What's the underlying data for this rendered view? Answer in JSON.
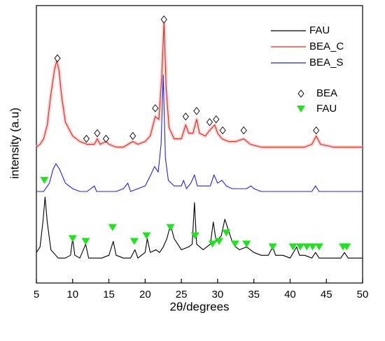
{
  "chart_data": {
    "type": "line",
    "x_label": "2θ/degrees",
    "y_label": "intensity (a.u)",
    "xlim": [
      5,
      50
    ],
    "xticks": [
      5,
      10,
      15,
      20,
      25,
      30,
      35,
      40,
      45,
      50
    ],
    "ylim": [
      0,
      100
    ],
    "series": [
      {
        "name": "FAU",
        "color": "#000000",
        "marker": "line",
        "x": [
          5,
          5.5,
          5.9,
          6.2,
          6.5,
          7,
          8,
          9,
          9.7,
          10,
          10.3,
          11,
          11.8,
          12.2,
          13,
          14,
          15,
          15.6,
          16,
          17,
          18,
          18.6,
          19,
          20,
          20.3,
          20.7,
          21.5,
          22,
          22.5,
          23,
          23.5,
          24,
          25,
          26,
          26.5,
          26.8,
          27.1,
          28,
          29,
          29.4,
          29.8,
          30.5,
          31,
          31.5,
          32,
          32.5,
          33,
          34,
          35,
          36,
          37,
          37.6,
          38,
          39,
          40,
          40.9,
          41.3,
          42,
          43,
          43.5,
          44,
          45,
          46,
          47,
          47.5,
          48,
          49,
          50
        ],
        "values": [
          11,
          13,
          22,
          31,
          22,
          12,
          9,
          9,
          10,
          16,
          10,
          9,
          14,
          9,
          9,
          9,
          10,
          15,
          10,
          9,
          9,
          12,
          9,
          11,
          16,
          11,
          12,
          11,
          13,
          16,
          21,
          16,
          12,
          13,
          14,
          29,
          14,
          12,
          14,
          22,
          15,
          17,
          23,
          19,
          15,
          13,
          12,
          13,
          11,
          10,
          10,
          13,
          10,
          10,
          9,
          13,
          10,
          10,
          9,
          11,
          9,
          9,
          9,
          9,
          11,
          9,
          9,
          9
        ]
      },
      {
        "name": "BEA_C",
        "color": "#c8302a",
        "marker": "line",
        "x": [
          5,
          5.5,
          6,
          6.5,
          7,
          7.5,
          7.8,
          8.1,
          8.5,
          9,
          10,
          11,
          12,
          13,
          13.4,
          13.8,
          14.6,
          15,
          16,
          17,
          18.3,
          19,
          20,
          20.7,
          21.4,
          21.9,
          22.3,
          22.6,
          22.9,
          23.3,
          24,
          25,
          25.6,
          26,
          26.6,
          27.1,
          27.5,
          28.3,
          28.9,
          29.6,
          30,
          30.6,
          31.5,
          32.5,
          33.6,
          34.5,
          36,
          38,
          40,
          42,
          43,
          43.6,
          44.2,
          46,
          48,
          50
        ],
        "values": [
          49,
          50,
          52,
          57,
          68,
          77,
          80,
          77,
          67,
          58,
          53,
          51,
          50,
          50,
          52,
          50,
          51,
          50,
          49,
          49,
          51,
          50,
          51,
          53,
          60,
          59,
          75,
          94,
          70,
          56,
          52,
          52,
          57,
          54,
          54,
          59,
          54,
          53,
          55,
          57,
          54,
          52,
          51,
          51,
          52,
          50,
          49,
          49,
          49,
          49,
          50,
          53,
          50,
          49,
          49,
          49
        ]
      },
      {
        "name": "BEA_S",
        "color": "#2424d0",
        "marker": "line",
        "x": [
          5,
          6,
          6.8,
          7.3,
          7.7,
          8.2,
          9,
          10,
          11,
          12,
          13,
          13.3,
          14,
          15,
          16,
          17,
          17.6,
          18,
          19,
          20,
          20.6,
          21.3,
          21.8,
          22.2,
          22.5,
          22.8,
          23.2,
          24,
          25,
          25.3,
          25.7,
          26.3,
          26.8,
          27.2,
          28,
          29,
          29.5,
          30,
          30.6,
          31.2,
          32,
          33,
          34,
          34.6,
          35,
          36,
          38,
          40,
          42,
          43,
          43.5,
          44,
          46,
          48,
          50
        ],
        "values": [
          33,
          33,
          36,
          41,
          43,
          41,
          36,
          34,
          33,
          33,
          35,
          33,
          33,
          33,
          33,
          34,
          36,
          33,
          34,
          35,
          38,
          42,
          40,
          50,
          75,
          45,
          37,
          35,
          35,
          37,
          34,
          36,
          39,
          35,
          35,
          35,
          39,
          36,
          37,
          35,
          34,
          34,
          34,
          35,
          34,
          33,
          33,
          33,
          33,
          33,
          35,
          33,
          33,
          33,
          33
        ]
      },
      {
        "name": "BEA",
        "color": "#000000",
        "marker": "diamond",
        "x": [
          7.9,
          11.9,
          13.4,
          14.6,
          18.3,
          21.4,
          22.6,
          25.6,
          27.1,
          28.9,
          29.8,
          30.7,
          33.6,
          43.6
        ],
        "values": [
          81,
          52,
          54,
          52,
          53,
          63,
          95,
          60,
          62,
          58,
          59,
          55,
          55,
          55
        ]
      },
      {
        "name": "FAU",
        "color": "#22e022",
        "marker": "triangle",
        "x": [
          6.1,
          10,
          11.8,
          15.5,
          18.5,
          20.2,
          23.5,
          26.9,
          29.3,
          30.2,
          31.2,
          32.4,
          34,
          37.6,
          40.4,
          41.4,
          42.3,
          43.1,
          44,
          47.3,
          47.8
        ],
        "values": [
          37,
          16,
          15,
          20,
          15,
          17,
          20,
          17,
          14,
          15,
          18,
          14,
          14,
          13,
          13,
          13,
          13,
          13,
          13,
          13,
          13
        ]
      }
    ]
  }
}
